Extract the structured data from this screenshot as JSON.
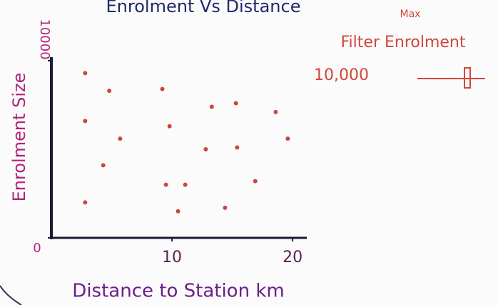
{
  "chart_data": {
    "type": "scatter",
    "title": "Enrolment Vs Distance",
    "x_label": "Distance to Station km",
    "y_label": "Enrolment Size",
    "x": [
      2.8,
      4.8,
      9.2,
      2.8,
      5.7,
      9.8,
      13.3,
      15.3,
      18.6,
      19.6,
      12.8,
      15.4,
      4.3,
      9.5,
      11.1,
      16.9,
      2.8,
      10.5,
      14.4
    ],
    "values": [
      9300,
      8300,
      8400,
      6600,
      5600,
      6300,
      7400,
      7600,
      7100,
      5600,
      5000,
      5100,
      4100,
      3000,
      3000,
      3200,
      2000,
      1500,
      1700
    ],
    "color": "#c9473e",
    "xlim": [
      0,
      21
    ],
    "xticks": [
      10,
      20
    ],
    "ylim": [
      0,
      10000
    ],
    "yticks": [
      0,
      10000
    ],
    "filter": {
      "caption": "Max",
      "title": "Filter Enrolment",
      "max": {
        "value": 10000,
        "label": "10,000"
      }
    }
  }
}
